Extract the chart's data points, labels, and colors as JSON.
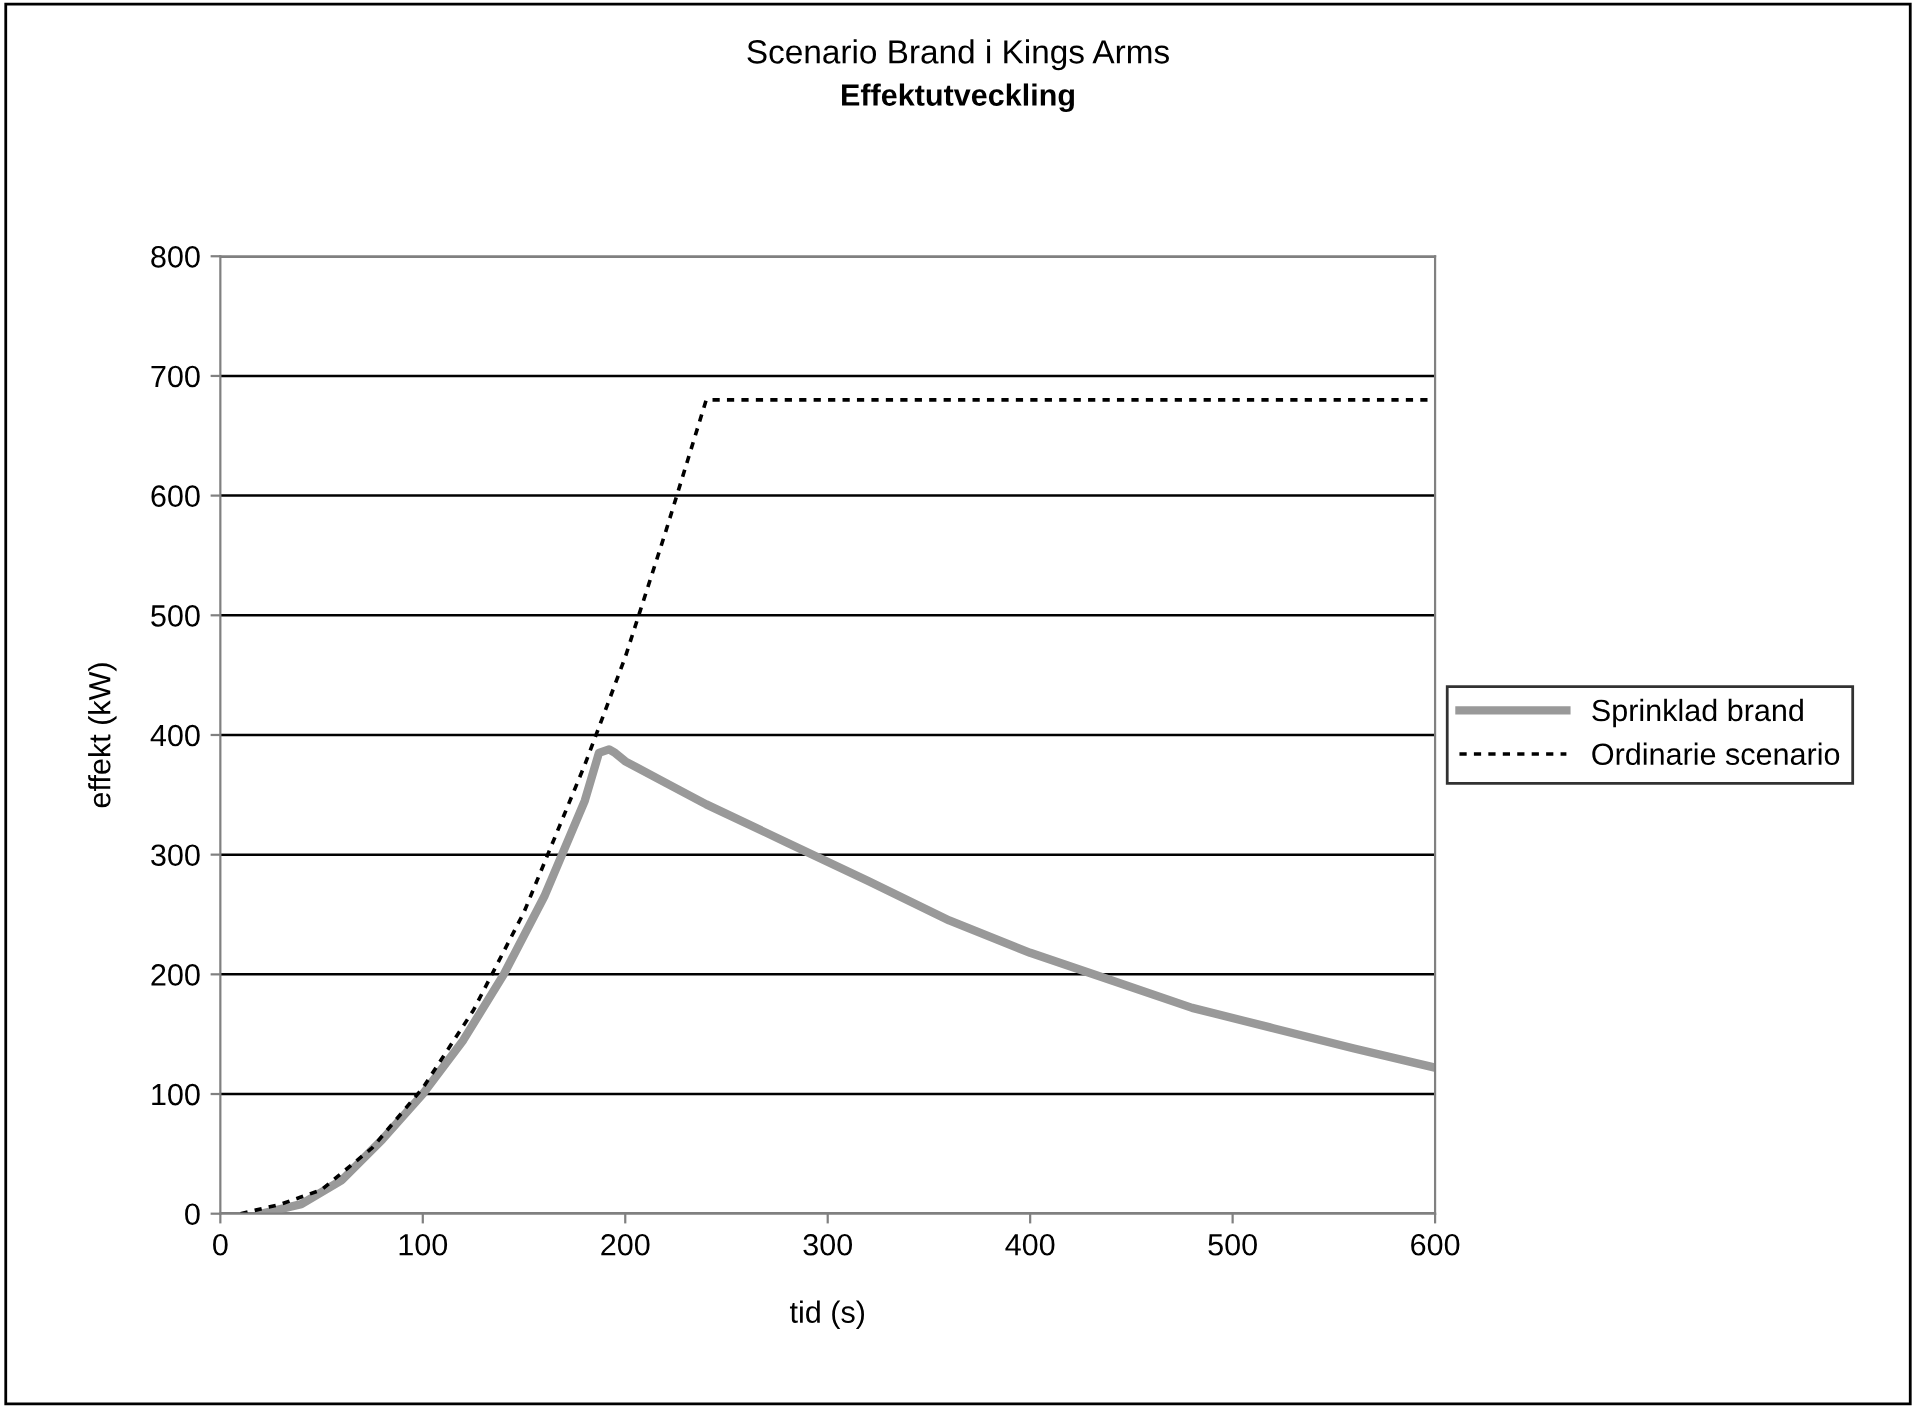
{
  "chart_data": {
    "type": "line",
    "title": "Scenario Brand i Kings Arms",
    "subtitle": "Effektutveckling",
    "xlabel": "tid (s)",
    "ylabel": "effekt (kW)",
    "xlim": [
      0,
      600
    ],
    "xticks": [
      0,
      100,
      200,
      300,
      400,
      500,
      600
    ],
    "ylim": [
      0,
      800
    ],
    "yticks": [
      0,
      100,
      200,
      300,
      400,
      500,
      600,
      700,
      800
    ],
    "grid": "y",
    "legend": "right",
    "marker": "none",
    "series": [
      {
        "name": "Sprinklad brand",
        "color": "#999999",
        "line_style": "solid",
        "x": [
          20,
          40,
          60,
          80,
          100,
          120,
          140,
          160,
          180,
          187,
          192,
          195,
          200,
          220,
          240,
          280,
          320,
          360,
          400,
          440,
          480,
          520,
          560,
          600
        ],
        "values": [
          0,
          8,
          28,
          62,
          100,
          145,
          200,
          265,
          345,
          385,
          388,
          385,
          378,
          360,
          342,
          310,
          278,
          245,
          218,
          195,
          172,
          155,
          138,
          122
        ]
      },
      {
        "name": "Ordinarie scenario",
        "color": "#000000",
        "line_style": "dotted",
        "x": [
          10,
          30,
          50,
          75,
          100,
          125,
          150,
          180,
          200,
          220,
          240,
          600
        ],
        "values": [
          0,
          8,
          20,
          55,
          105,
          170,
          252,
          375,
          465,
          570,
          680,
          680
        ]
      }
    ]
  }
}
